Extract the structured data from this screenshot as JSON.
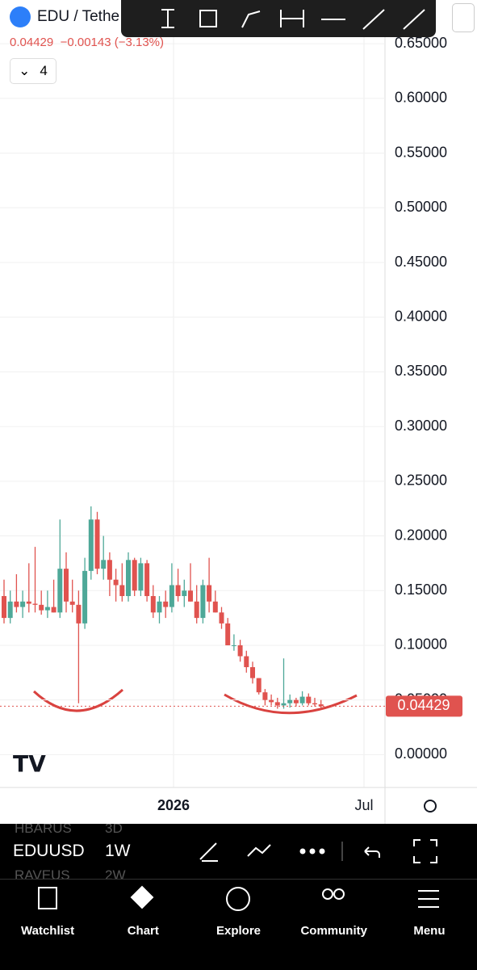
{
  "header": {
    "symbol": "EDU / Tethe",
    "price": "0.04429",
    "change": "−0.00143 (−3.13%)",
    "indicator_count": "4"
  },
  "chart_data": {
    "type": "candlestick",
    "open": [
      0.145,
      0.125,
      0.14,
      0.135,
      0.14,
      0.138,
      0.137,
      0.132,
      0.135,
      0.13,
      0.17,
      0.14,
      0.137,
      0.12,
      0.168,
      0.215,
      0.17,
      0.178,
      0.16,
      0.155,
      0.145,
      0.178,
      0.15,
      0.175,
      0.145,
      0.13,
      0.14,
      0.135,
      0.155,
      0.145,
      0.15,
      0.14,
      0.125,
      0.155,
      0.14,
      0.13,
      0.12,
      0.1,
      0.1,
      0.09,
      0.08,
      0.07,
      0.057,
      0.05,
      0.048,
      0.045,
      0.047,
      0.05,
      0.047,
      0.053,
      0.047,
      0.046
    ],
    "high": [
      0.16,
      0.15,
      0.165,
      0.15,
      0.175,
      0.19,
      0.15,
      0.15,
      0.16,
      0.215,
      0.185,
      0.16,
      0.15,
      0.18,
      0.227,
      0.222,
      0.2,
      0.185,
      0.17,
      0.175,
      0.185,
      0.18,
      0.18,
      0.178,
      0.155,
      0.145,
      0.15,
      0.175,
      0.17,
      0.16,
      0.175,
      0.155,
      0.16,
      0.18,
      0.15,
      0.135,
      0.125,
      0.11,
      0.105,
      0.095,
      0.085,
      0.07,
      0.06,
      0.055,
      0.052,
      0.088,
      0.055,
      0.052,
      0.058,
      0.056,
      0.052,
      0.05
    ],
    "low": [
      0.12,
      0.12,
      0.13,
      0.125,
      0.13,
      0.13,
      0.128,
      0.125,
      0.13,
      0.125,
      0.13,
      0.13,
      0.047,
      0.115,
      0.16,
      0.165,
      0.16,
      0.145,
      0.14,
      0.14,
      0.14,
      0.145,
      0.145,
      0.14,
      0.125,
      0.12,
      0.125,
      0.13,
      0.14,
      0.135,
      0.14,
      0.12,
      0.12,
      0.13,
      0.13,
      0.115,
      0.1,
      0.095,
      0.085,
      0.075,
      0.065,
      0.055,
      0.045,
      0.045,
      0.042,
      0.042,
      0.043,
      0.044,
      0.045,
      0.045,
      0.044,
      0.043
    ],
    "close": [
      0.125,
      0.14,
      0.135,
      0.14,
      0.138,
      0.137,
      0.132,
      0.135,
      0.13,
      0.17,
      0.14,
      0.137,
      0.12,
      0.168,
      0.215,
      0.17,
      0.178,
      0.16,
      0.155,
      0.145,
      0.178,
      0.15,
      0.175,
      0.145,
      0.13,
      0.14,
      0.135,
      0.155,
      0.145,
      0.15,
      0.14,
      0.125,
      0.155,
      0.14,
      0.13,
      0.12,
      0.1,
      0.1,
      0.09,
      0.08,
      0.07,
      0.057,
      0.05,
      0.048,
      0.045,
      0.047,
      0.05,
      0.047,
      0.053,
      0.047,
      0.046,
      0.04429
    ],
    "up_color": "#4ea898",
    "down_color": "#e0534f",
    "last_price": 0.04429,
    "ylim": [
      -0.03,
      0.69
    ],
    "yticks": [
      {
        "value": 0,
        "label": "0.00000"
      },
      {
        "value": 0.05,
        "label": "0.05000"
      },
      {
        "value": 0.1,
        "label": "0.10000"
      },
      {
        "value": 0.15,
        "label": "0.15000"
      },
      {
        "value": 0.2,
        "label": "0.20000"
      },
      {
        "value": 0.25,
        "label": "0.25000"
      },
      {
        "value": 0.3,
        "label": "0.30000"
      },
      {
        "value": 0.35,
        "label": "0.35000"
      },
      {
        "value": 0.4,
        "label": "0.40000"
      },
      {
        "value": 0.45,
        "label": "0.45000"
      },
      {
        "value": 0.5,
        "label": "0.50000"
      },
      {
        "value": 0.55,
        "label": "0.55000"
      },
      {
        "value": 0.6,
        "label": "0.60000"
      },
      {
        "value": 0.65,
        "label": "0.65000"
      }
    ],
    "xtick_labels": [
      "2026",
      "Jul"
    ],
    "grid": true
  },
  "symbol_bar": {
    "above": [
      "HBARUS",
      "3D"
    ],
    "current": [
      "EDUUSD",
      "1W"
    ],
    "below": [
      "RAVEUS",
      "2W"
    ]
  },
  "nav": [
    "Watchlist",
    "Chart",
    "Explore",
    "Community",
    "Menu"
  ]
}
